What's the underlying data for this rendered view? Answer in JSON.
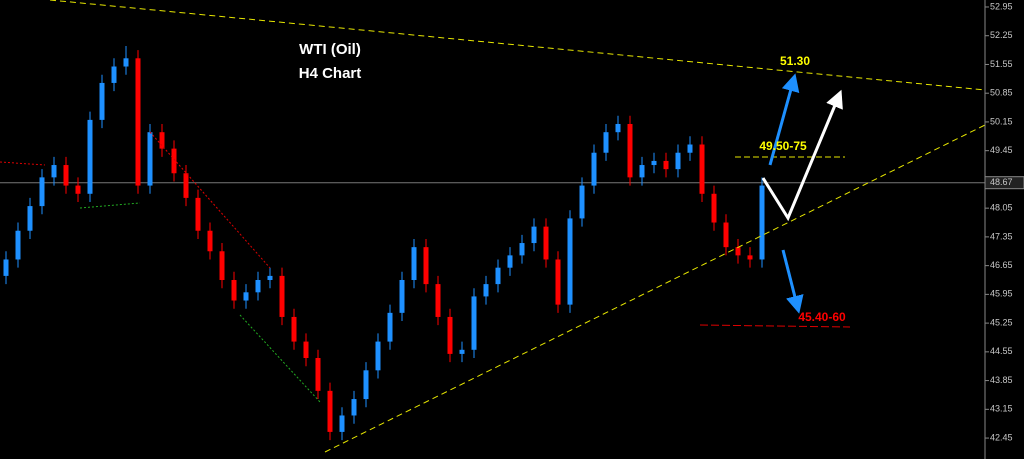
{
  "chart_data": {
    "type": "candlestick",
    "title": "WTI (Oil)",
    "subtitle": "H4 Chart",
    "up_color": "#1e90ff",
    "down_color": "#ff0000",
    "open": [
      46.4,
      46.8,
      47.5,
      48.1,
      48.8,
      49.1,
      48.6,
      48.4,
      50.2,
      51.1,
      51.5,
      51.7,
      48.6,
      49.9,
      49.5,
      48.9,
      48.3,
      47.5,
      47.0,
      46.3,
      45.8,
      46.0,
      46.3,
      46.4,
      45.4,
      44.8,
      44.4,
      43.6,
      42.6,
      43.0,
      43.4,
      44.1,
      44.8,
      45.5,
      46.3,
      47.1,
      46.2,
      45.4,
      44.5,
      44.6,
      45.9,
      46.2,
      46.6,
      46.9,
      47.2,
      47.6,
      46.8,
      45.7,
      47.8,
      48.6,
      49.4,
      49.9,
      50.1,
      48.8,
      49.1,
      49.2,
      49.0,
      49.4,
      49.6,
      48.4,
      47.7,
      47.1,
      46.9,
      46.8
    ],
    "high": [
      47.0,
      47.7,
      48.3,
      49.0,
      49.3,
      49.3,
      48.8,
      50.4,
      51.3,
      51.7,
      52.0,
      51.9,
      50.1,
      50.1,
      49.7,
      49.1,
      48.5,
      47.7,
      47.2,
      46.5,
      46.2,
      46.5,
      46.6,
      46.6,
      45.6,
      45.0,
      44.6,
      43.8,
      43.2,
      43.6,
      44.3,
      45.0,
      45.7,
      46.5,
      47.3,
      47.3,
      46.4,
      45.6,
      44.8,
      46.1,
      46.4,
      46.8,
      47.1,
      47.4,
      47.8,
      47.8,
      47.0,
      48.0,
      48.8,
      49.6,
      50.1,
      50.3,
      50.3,
      49.3,
      49.4,
      49.4,
      49.6,
      49.8,
      49.8,
      48.6,
      47.9,
      47.3,
      47.1,
      48.8
    ],
    "low": [
      46.2,
      46.6,
      47.3,
      47.9,
      48.6,
      48.4,
      48.2,
      48.2,
      50.0,
      50.9,
      51.3,
      48.4,
      48.4,
      49.3,
      48.7,
      48.1,
      47.3,
      46.8,
      46.1,
      45.6,
      45.6,
      45.8,
      46.1,
      45.2,
      44.6,
      44.2,
      43.4,
      42.4,
      42.4,
      42.8,
      43.2,
      43.9,
      44.6,
      45.3,
      46.1,
      46.0,
      45.2,
      44.3,
      44.3,
      44.4,
      45.7,
      46.0,
      46.4,
      46.7,
      47.0,
      46.6,
      45.5,
      45.5,
      47.6,
      48.4,
      49.2,
      49.7,
      48.6,
      48.6,
      48.9,
      48.8,
      48.8,
      49.2,
      48.2,
      47.5,
      46.9,
      46.7,
      46.6,
      46.6
    ],
    "close": [
      46.8,
      47.5,
      48.1,
      48.8,
      49.1,
      48.6,
      48.4,
      50.2,
      51.1,
      51.5,
      51.7,
      48.6,
      49.9,
      49.5,
      48.9,
      48.3,
      47.5,
      47.0,
      46.3,
      45.8,
      46.0,
      46.3,
      46.4,
      45.4,
      44.8,
      44.4,
      43.6,
      42.6,
      43.0,
      43.4,
      44.1,
      44.8,
      45.5,
      46.3,
      47.1,
      46.2,
      45.4,
      44.5,
      44.6,
      45.9,
      46.2,
      46.6,
      46.9,
      47.2,
      47.6,
      46.8,
      45.7,
      47.8,
      48.6,
      49.4,
      49.9,
      50.1,
      48.8,
      49.1,
      49.2,
      49.0,
      49.4,
      49.6,
      48.4,
      47.7,
      47.1,
      46.9,
      46.8,
      48.6
    ],
    "ylim": [
      41.94,
      53.12
    ],
    "yticks": [
      52.95,
      52.25,
      51.55,
      50.85,
      50.15,
      49.45,
      48.05,
      47.35,
      46.65,
      45.95,
      45.25,
      44.55,
      43.85,
      43.15,
      42.45
    ],
    "current_price": 48.67,
    "annotations": [
      {
        "text": "51.30",
        "color": "#ffff00"
      },
      {
        "text": "49.50-75",
        "color": "#ffff00"
      },
      {
        "text": "45.40-60",
        "color": "#ff0000"
      }
    ]
  }
}
